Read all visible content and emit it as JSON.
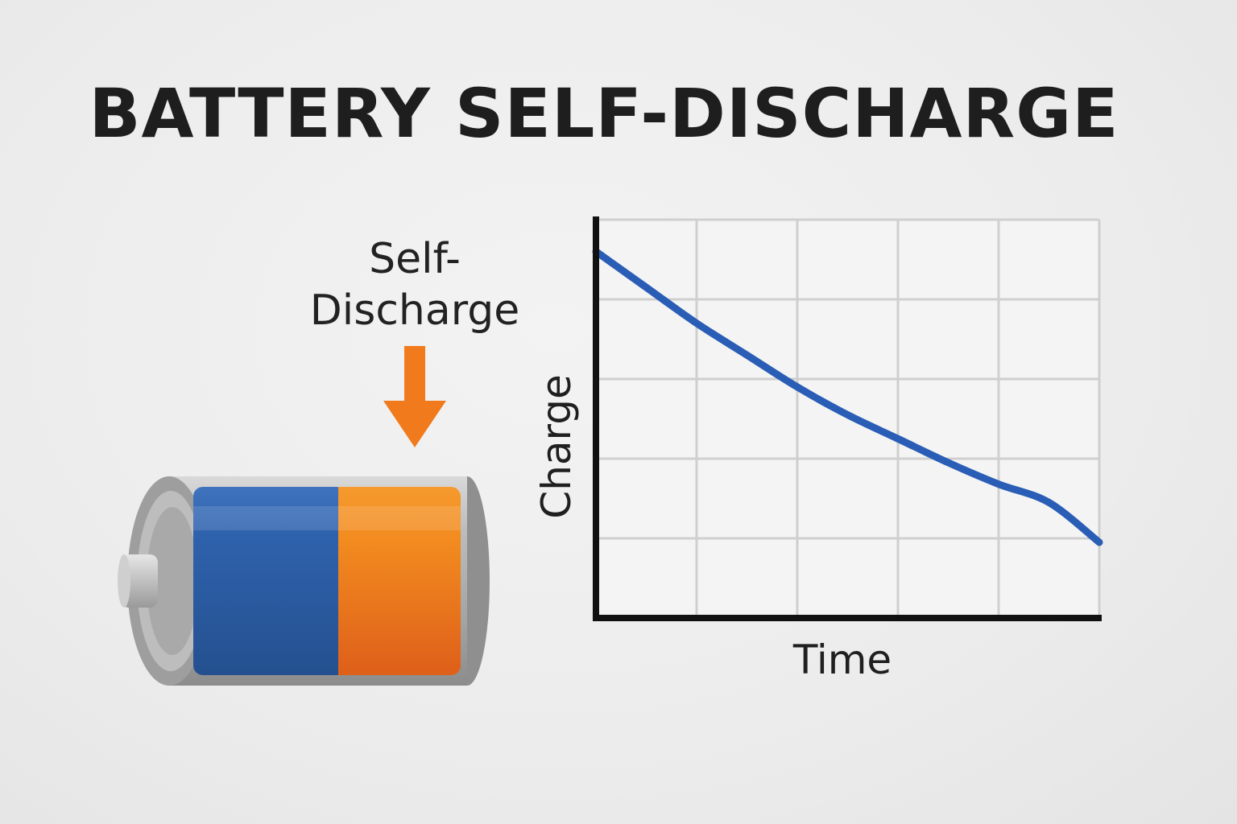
{
  "title": "BATTERY SELF-DISCHARGE",
  "battery_label": {
    "line1": "Self-",
    "line2": "Discharge"
  },
  "colors": {
    "charge_blue": "#2f5fad",
    "discharge_orange": "#f07d1e",
    "curve_blue": "#2a5db5",
    "arrow_orange": "#f07a1c"
  },
  "icons": [
    "down-arrow-icon",
    "battery-icon"
  ],
  "chart_data": {
    "type": "line",
    "xlabel": "Time",
    "ylabel": "Charge",
    "grid": true,
    "xlim": [
      0,
      5
    ],
    "ylim": [
      0,
      5
    ],
    "series": [
      {
        "x": [
          0,
          0.5,
          1,
          1.5,
          2,
          2.5,
          3,
          3.5,
          4,
          4.5,
          5
        ],
        "values": [
          4.6,
          4.15,
          3.7,
          3.3,
          2.9,
          2.55,
          2.25,
          1.95,
          1.68,
          1.45,
          0.95
        ]
      }
    ]
  }
}
